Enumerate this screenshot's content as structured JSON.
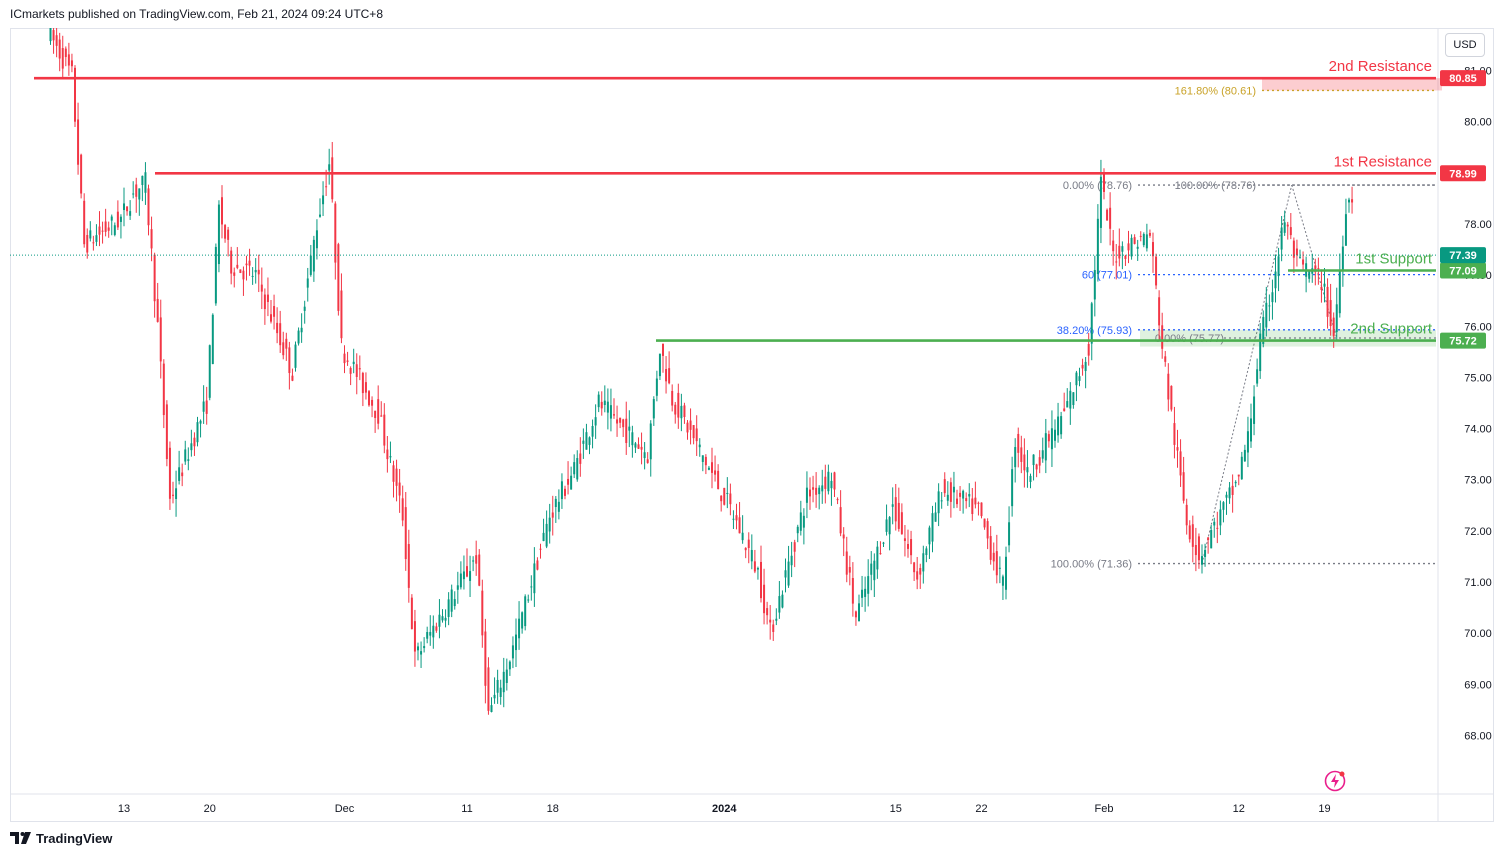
{
  "header": {
    "publisher_text": "ICmarkets published on TradingView.com, Feb 21, 2024 09:24 UTC+8"
  },
  "currency_button": "USD",
  "footer": {
    "brand": "TradingView"
  },
  "icons": {
    "logo": "tradingview-logo-icon",
    "replay": "lightning-icon"
  },
  "colors": {
    "up": "#089981",
    "down": "#f23645",
    "resistance": "#f23645",
    "support": "#4caf50",
    "fib_gold": "#c9a227",
    "fib_blue": "#2962ff",
    "fib_grey": "#787b86"
  },
  "chart_data": {
    "type": "candlestick",
    "y_axis": {
      "ylim": [
        67.3,
        83.0
      ],
      "ticks": [
        "68.00",
        "69.00",
        "70.00",
        "71.00",
        "72.00",
        "73.00",
        "74.00",
        "75.00",
        "76.00",
        "77.00",
        "78.00",
        "80.00",
        "81.00"
      ],
      "side": "right"
    },
    "x_axis": {
      "ticks": [
        "13",
        "20",
        "Dec",
        "11",
        "18",
        "2024",
        "15",
        "22",
        "Feb",
        "12",
        "19"
      ]
    },
    "candle_path": [
      [
        "2023-11-07",
        81.8
      ],
      [
        "2023-11-09",
        80.9
      ],
      [
        "2023-11-10",
        77.6
      ],
      [
        "2023-11-13",
        78.1
      ],
      [
        "2023-11-14",
        78.6
      ],
      [
        "2023-11-15",
        78.8
      ],
      [
        "2023-11-16",
        76.0
      ],
      [
        "2023-11-17",
        72.6
      ],
      [
        "2023-11-20",
        74.5
      ],
      [
        "2023-11-21",
        78.3
      ],
      [
        "2023-11-22",
        77.2
      ],
      [
        "2023-11-24",
        77.0
      ],
      [
        "2023-11-27",
        75.1
      ],
      [
        "2023-11-29",
        78.0
      ],
      [
        "2023-11-30",
        79.2
      ],
      [
        "2023-12-01",
        75.6
      ],
      [
        "2023-12-04",
        74.3
      ],
      [
        "2023-12-06",
        72.3
      ],
      [
        "2023-12-07",
        69.5
      ],
      [
        "2023-12-11",
        71.1
      ],
      [
        "2023-12-12",
        71.5
      ],
      [
        "2023-12-13",
        68.4
      ],
      [
        "2023-12-15",
        69.7
      ],
      [
        "2023-12-18",
        72.3
      ],
      [
        "2023-12-20",
        73.2
      ],
      [
        "2023-12-22",
        74.5
      ],
      [
        "2023-12-26",
        73.5
      ],
      [
        "2023-12-27",
        75.6
      ],
      [
        "2023-12-28",
        74.6
      ],
      [
        "2024-01-02",
        72.3
      ],
      [
        "2024-01-04",
        71.2
      ],
      [
        "2024-01-05",
        70.0
      ],
      [
        "2024-01-08",
        72.7
      ],
      [
        "2024-01-10",
        73.1
      ],
      [
        "2024-01-12",
        70.3
      ],
      [
        "2024-01-15",
        72.5
      ],
      [
        "2024-01-17",
        71.1
      ],
      [
        "2024-01-19",
        72.8
      ],
      [
        "2024-01-22",
        72.4
      ],
      [
        "2024-01-24",
        70.9
      ],
      [
        "2024-01-25",
        73.8
      ],
      [
        "2024-01-26",
        73.1
      ],
      [
        "2024-01-29",
        74.3
      ],
      [
        "2024-01-31",
        75.6
      ],
      [
        "2024-02-01",
        78.8
      ],
      [
        "2024-02-02",
        77.4
      ],
      [
        "2024-02-05",
        77.8
      ],
      [
        "2024-02-06",
        75.6
      ],
      [
        "2024-02-07",
        73.8
      ],
      [
        "2024-02-08",
        72.2
      ],
      [
        "2024-02-09",
        71.5
      ],
      [
        "2024-02-12",
        72.9
      ],
      [
        "2024-02-13",
        73.8
      ],
      [
        "2024-02-14",
        75.7
      ],
      [
        "2024-02-15",
        76.8
      ],
      [
        "2024-02-16",
        78.1
      ],
      [
        "2024-02-17",
        77.2
      ],
      [
        "2024-02-19",
        76.9
      ],
      [
        "2024-02-20",
        75.8
      ],
      [
        "2024-02-21",
        78.4
      ],
      [
        "2024-02-22",
        78.7
      ],
      [
        "2024-02-23",
        77.4
      ]
    ],
    "levels": [
      {
        "label": "2nd Resistance",
        "value": 80.85,
        "price_tag": "80.85",
        "kind": "resistance"
      },
      {
        "label": "1st Resistance",
        "value": 78.99,
        "price_tag": "78.99",
        "kind": "resistance"
      },
      {
        "label": "1st Support",
        "value": 77.09,
        "price_tag": "77.09",
        "kind": "support"
      },
      {
        "label": "2nd Support",
        "value": 75.72,
        "price_tag": "75.72",
        "kind": "support"
      }
    ],
    "last_price": {
      "value": 77.39,
      "price_tag": "77.39"
    },
    "fibonacci": [
      {
        "label": "161.80% (80.61)",
        "value": 80.61,
        "color": "#c9a227"
      },
      {
        "label": "0.00% (78.76)",
        "value": 78.76,
        "color": "#787b86"
      },
      {
        "label": "100.00% (78.76)",
        "value": 78.76,
        "color": "#787b86"
      },
      {
        "label": "60 (77.01)",
        "value": 77.01,
        "color": "#2962ff"
      },
      {
        "label": "38.20% (75.93)",
        "value": 75.93,
        "color": "#2962ff"
      },
      {
        "label": "0.00% (75.77)",
        "value": 75.77,
        "color": "#787b86"
      },
      {
        "label": "100.00% (71.36)",
        "value": 71.36,
        "color": "#787b86"
      }
    ]
  }
}
